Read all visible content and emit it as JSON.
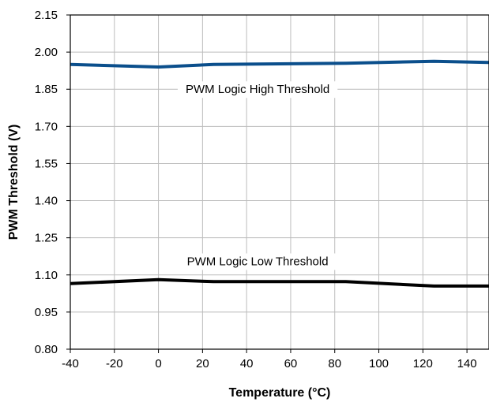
{
  "chart_data": {
    "type": "line",
    "title": "",
    "xlabel": "Temperature (°C)",
    "ylabel": "PWM Threshold (V)",
    "xlim": [
      -40,
      150
    ],
    "ylim": [
      0.8,
      2.15
    ],
    "xticks": [
      -40,
      -20,
      0,
      20,
      40,
      60,
      80,
      100,
      120,
      140
    ],
    "yticks": [
      0.8,
      0.95,
      1.1,
      1.25,
      1.4,
      1.55,
      1.7,
      1.85,
      2.0,
      2.15
    ],
    "x_tick_labels": [
      "-40",
      "-20",
      "0",
      "20",
      "40",
      "60",
      "80",
      "100",
      "120",
      "140"
    ],
    "y_tick_labels": [
      "0.80",
      "0.95",
      "1.10",
      "1.25",
      "1.40",
      "1.55",
      "1.70",
      "1.85",
      "2.00",
      "2.15"
    ],
    "grid": true,
    "series": [
      {
        "name": "PWM Logic High Threshold",
        "color": "#0b4f8c",
        "x": [
          -40,
          0,
          25,
          85,
          125,
          150
        ],
        "y": [
          1.95,
          1.94,
          1.95,
          1.955,
          1.963,
          1.958
        ]
      },
      {
        "name": "PWM Logic Low Threshold",
        "color": "#000000",
        "x": [
          -40,
          0,
          25,
          85,
          125,
          150
        ],
        "y": [
          1.065,
          1.081,
          1.073,
          1.073,
          1.055,
          1.055
        ]
      }
    ],
    "annotations": [
      {
        "text": "PWM Logic High Threshold",
        "x": 45,
        "y": 1.85
      },
      {
        "text": "PWM Logic Low Threshold",
        "x": 45,
        "y": 1.155
      }
    ]
  }
}
